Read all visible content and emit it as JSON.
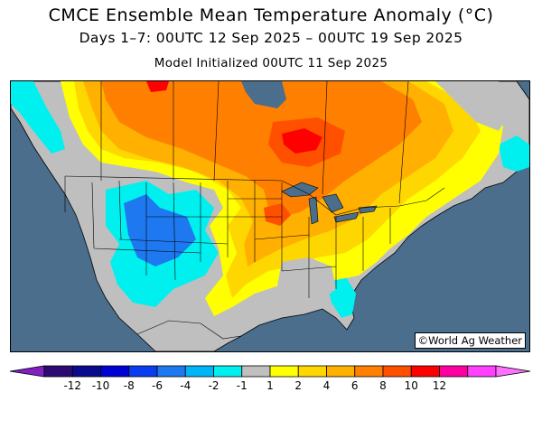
{
  "header": {
    "title": "CMCE Ensemble Mean Temperature Anomaly (°C)",
    "subtitle": "Days 1–7: 00UTC 12 Sep 2025 – 00UTC 19 Sep 2025",
    "init": "Model Initialized 00UTC 11 Sep 2025"
  },
  "map": {
    "credit": "©World Ag Weather",
    "ocean_color": "#4a6e8c",
    "land_color": "#bfbfbf"
  },
  "legend": {
    "bins": [
      {
        "color": "#2d0a73"
      },
      {
        "color": "#0a0a8c"
      },
      {
        "color": "#0000d2"
      },
      {
        "color": "#0a3cf0"
      },
      {
        "color": "#1e78f0"
      },
      {
        "color": "#00b4f5"
      },
      {
        "color": "#00f0f0"
      },
      {
        "color": "#bfbfbf"
      },
      {
        "color": "#ffff00"
      },
      {
        "color": "#ffd700"
      },
      {
        "color": "#ffb000"
      },
      {
        "color": "#ff8000"
      },
      {
        "color": "#ff5000"
      },
      {
        "color": "#ff0000"
      },
      {
        "color": "#ff00a0"
      },
      {
        "color": "#ff40ff"
      }
    ],
    "left_arrow_color": "#8020c0",
    "right_arrow_color": "#ff70ff",
    "ticks": [
      "-12",
      "-10",
      "-8",
      "-6",
      "-4",
      "-2",
      "-1",
      "1",
      "2",
      "4",
      "6",
      "8",
      "10",
      "12"
    ]
  }
}
